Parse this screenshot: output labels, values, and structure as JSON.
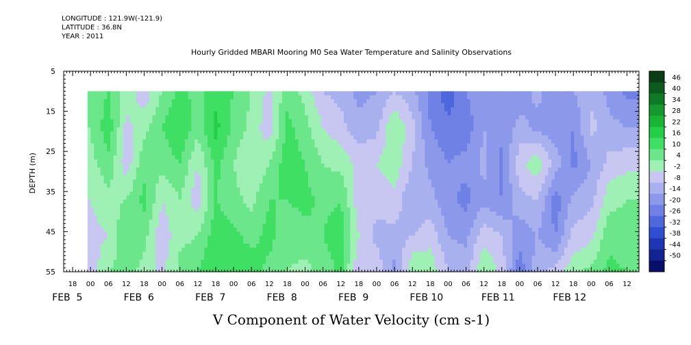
{
  "header": {
    "longitude": "LONGITUDE : 121.9W(-121.9)",
    "latitude": "LATITUDE : 36.8N",
    "year": "YEAR : 2011"
  },
  "chart_data": {
    "type": "heatmap",
    "title": "Hourly Gridded MBARI Mooring M0 Sea Water Temperature and Salinity Observations",
    "xlabel": "V Component of Water Velocity (cm s-1)",
    "ylabel": "DEPTH (m)",
    "ylim": [
      5,
      55
    ],
    "y_ticks": [
      5,
      15,
      25,
      35,
      45,
      55
    ],
    "x_hour_ticks": [
      "18",
      "00",
      "06",
      "12",
      "18",
      "00",
      "06",
      "12",
      "18",
      "00",
      "06",
      "12",
      "18",
      "00",
      "06",
      "12",
      "18",
      "00",
      "06",
      "12",
      "18",
      "00",
      "06",
      "12",
      "18",
      "00",
      "06",
      "12",
      "18",
      "00",
      "06",
      "12"
    ],
    "x_date_labels": [
      "FEB  5",
      "FEB  6",
      "FEB  7",
      "FEB  8",
      "FEB  9",
      "FEB 10",
      "FEB 11",
      "FEB 12"
    ],
    "data_depth_range": [
      10,
      55
    ],
    "colorbar": {
      "levels": [
        48,
        46,
        40,
        34,
        28,
        22,
        16,
        10,
        4,
        -2,
        -8,
        -14,
        -20,
        -26,
        -32,
        -38,
        -44,
        -50
      ],
      "labels": [
        "46",
        "40",
        "34",
        "28",
        "22",
        "16",
        "10",
        "4",
        "-2",
        "-8",
        "-14",
        "-20",
        "-26",
        "-32",
        "-38",
        "-44",
        "-50"
      ],
      "colors": [
        "#0a3d14",
        "#0c5a1c",
        "#0f7a25",
        "#13992d",
        "#18b536",
        "#22cf47",
        "#3fdf63",
        "#6ce68a",
        "#9ef0b4",
        "#c7c7f2",
        "#a9b0ee",
        "#8c99ea",
        "#6f81e4",
        "#4f67dc",
        "#2f4ed2",
        "#1e36b4",
        "#122392",
        "#080f6a"
      ]
    },
    "profile_columns": [
      {
        "day": 5.0,
        "v": [
          6,
          4,
          2,
          -2,
          -4,
          -6
        ]
      },
      {
        "day": 5.25,
        "v": [
          10,
          14,
          8,
          2,
          -2,
          4
        ]
      },
      {
        "day": 5.5,
        "v": [
          2,
          -4,
          -6,
          4,
          10,
          6
        ]
      },
      {
        "day": 5.75,
        "v": [
          -6,
          2,
          8,
          12,
          6,
          2
        ]
      },
      {
        "day": 6.0,
        "v": [
          4,
          10,
          6,
          -2,
          -6,
          -4
        ]
      },
      {
        "day": 6.25,
        "v": [
          12,
          16,
          10,
          4,
          2,
          6
        ]
      },
      {
        "day": 6.5,
        "v": [
          8,
          6,
          -2,
          -6,
          4,
          10
        ]
      },
      {
        "day": 6.75,
        "v": [
          14,
          18,
          12,
          10,
          14,
          16
        ]
      },
      {
        "day": 7.0,
        "v": [
          10,
          8,
          4,
          6,
          12,
          10
        ]
      },
      {
        "day": 7.25,
        "v": [
          4,
          2,
          -2,
          2,
          8,
          14
        ]
      },
      {
        "day": 7.5,
        "v": [
          -4,
          -6,
          4,
          10,
          12,
          8
        ]
      },
      {
        "day": 7.75,
        "v": [
          8,
          12,
          14,
          10,
          6,
          4
        ]
      },
      {
        "day": 8.0,
        "v": [
          2,
          6,
          10,
          12,
          8,
          2
        ]
      },
      {
        "day": 8.25,
        "v": [
          -8,
          -2,
          4,
          8,
          10,
          6
        ]
      },
      {
        "day": 8.5,
        "v": [
          -10,
          -6,
          2,
          10,
          14,
          12
        ]
      },
      {
        "day": 8.75,
        "v": [
          -16,
          -12,
          -4,
          -6,
          -2,
          -8
        ]
      },
      {
        "day": 9.0,
        "v": [
          -14,
          -10,
          -2,
          -6,
          -10,
          -4
        ]
      },
      {
        "day": 9.25,
        "v": [
          -8,
          4,
          2,
          -4,
          -10,
          -16
        ]
      },
      {
        "day": 9.5,
        "v": [
          -12,
          -6,
          -8,
          -14,
          -8,
          4
        ]
      },
      {
        "day": 9.75,
        "v": [
          -22,
          -20,
          -16,
          -12,
          -4,
          2
        ]
      },
      {
        "day": 10.0,
        "v": [
          -30,
          -24,
          -20,
          -18,
          -14,
          -8
        ]
      },
      {
        "day": 10.25,
        "v": [
          -20,
          -24,
          -18,
          -22,
          -16,
          -10
        ]
      },
      {
        "day": 10.5,
        "v": [
          -16,
          -14,
          -12,
          -16,
          -4,
          4
        ]
      },
      {
        "day": 10.75,
        "v": [
          -14,
          -18,
          -22,
          -20,
          -8,
          -4
        ]
      },
      {
        "day": 11.0,
        "v": [
          -18,
          -12,
          -4,
          -10,
          -18,
          -24
        ]
      },
      {
        "day": 11.25,
        "v": [
          -12,
          -16,
          2,
          -8,
          -14,
          -10
        ]
      },
      {
        "day": 11.5,
        "v": [
          -20,
          -18,
          -10,
          -24,
          -20,
          -6
        ]
      },
      {
        "day": 11.75,
        "v": [
          -14,
          -20,
          -22,
          -12,
          -6,
          2
        ]
      },
      {
        "day": 12.0,
        "v": [
          -10,
          -6,
          -14,
          -10,
          -4,
          6
        ]
      },
      {
        "day": 12.25,
        "v": [
          -16,
          -12,
          -6,
          2,
          8,
          12
        ]
      },
      {
        "day": 12.5,
        "v": [
          -22,
          -14,
          -4,
          4,
          6,
          10
        ]
      }
    ],
    "profile_depths": [
      10,
      19,
      28,
      37,
      46,
      55
    ],
    "x_range_days": [
      4.625,
      12.667
    ],
    "data_start_day": 4.958,
    "grid": false
  }
}
